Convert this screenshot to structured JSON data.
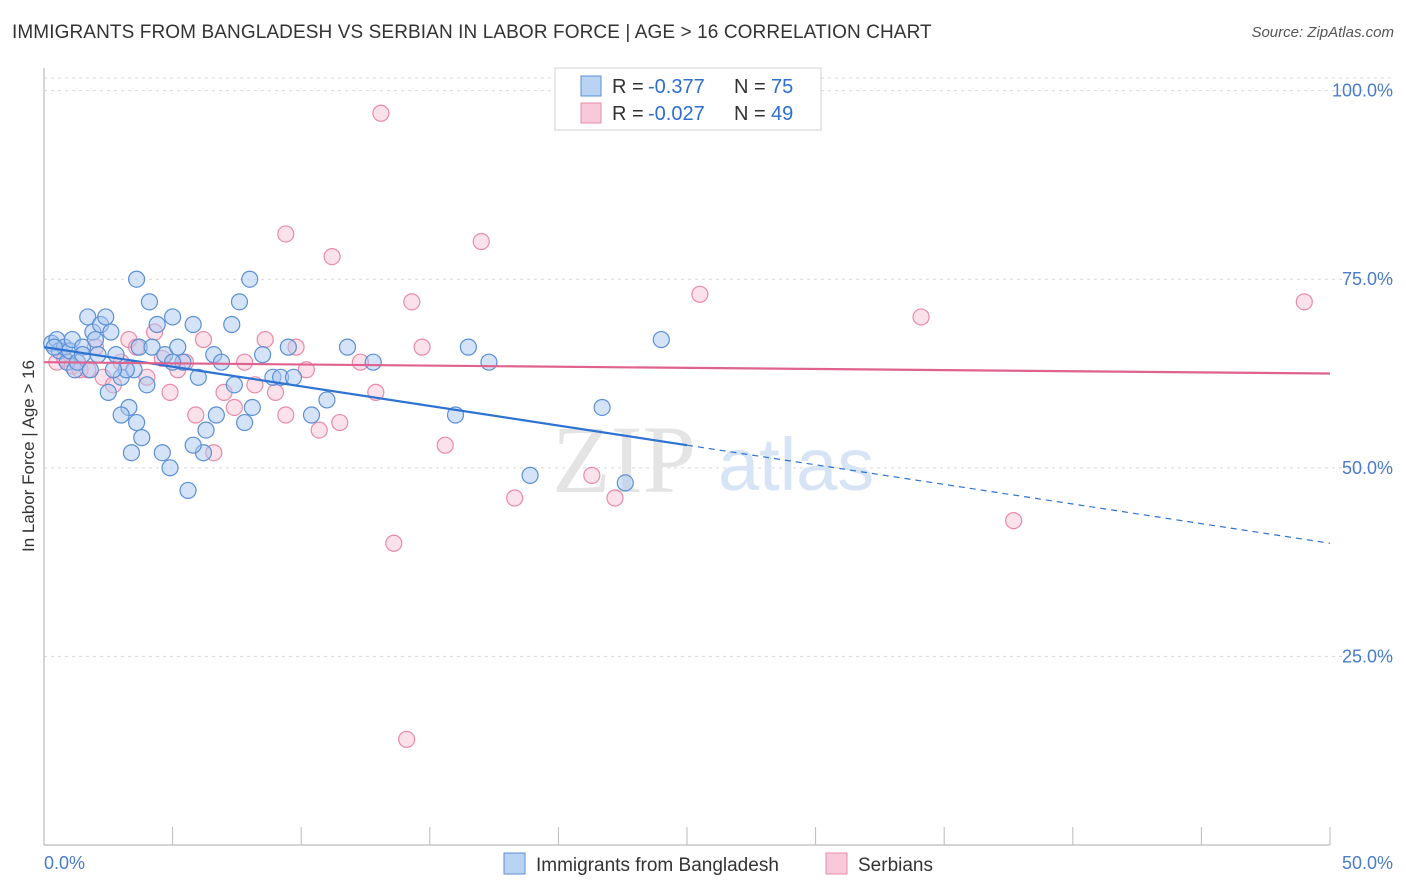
{
  "title": "IMMIGRANTS FROM BANGLADESH VS SERBIAN IN LABOR FORCE | AGE > 16 CORRELATION CHART",
  "source": "Source: ZipAtlas.com",
  "watermark": {
    "zip": "ZIP",
    "atlas": "atlas"
  },
  "legend": {
    "rows": [
      {
        "r_label": "R =",
        "r_value": "-0.377",
        "n_label": "N =",
        "n_value": "75"
      },
      {
        "r_label": "R =",
        "r_value": "-0.027",
        "n_label": "N =",
        "n_value": "49"
      }
    ]
  },
  "bottom_legend": [
    "Immigrants from Bangladesh",
    "Serbians"
  ],
  "colors": {
    "blue_fill": "#a9c8f0",
    "blue_stroke": "#5b8fd6",
    "blue_line": "#2e72d2",
    "pink_fill": "#f7bfd0",
    "pink_stroke": "#e98aa8",
    "pink_line": "#e0628e",
    "grid": "#d8d8d8",
    "tick_text": "#4a7cc9"
  },
  "chart_data": {
    "type": "scatter",
    "title": "IMMIGRANTS FROM BANGLADESH VS SERBIAN IN LABOR FORCE | AGE > 16 CORRELATION CHART",
    "xlabel": "",
    "ylabel": "In Labor Force | Age > 16",
    "xlim": [
      0,
      50
    ],
    "ylim": [
      0,
      103
    ],
    "x_tick_labels": [
      "0.0%",
      "50.0%"
    ],
    "y_ticks": [
      25,
      50,
      75,
      100
    ],
    "y_tick_labels": [
      "25.0%",
      "50.0%",
      "75.0%",
      "100.0%"
    ],
    "grid": true,
    "series": [
      {
        "name": "Immigrants from Bangladesh",
        "R": -0.377,
        "N": 75,
        "trend": {
          "x0": 0,
          "y0": 66,
          "x1": 50,
          "y1": 40,
          "solid_until_x": 25
        },
        "points": [
          [
            0.3,
            66.5
          ],
          [
            0.5,
            67
          ],
          [
            0.6,
            65.5
          ],
          [
            0.8,
            66
          ],
          [
            0.9,
            64
          ],
          [
            1.0,
            65.5
          ],
          [
            1.1,
            67
          ],
          [
            0.4,
            66
          ],
          [
            1.2,
            63
          ],
          [
            1.3,
            64
          ],
          [
            1.5,
            66
          ],
          [
            1.7,
            70
          ],
          [
            1.9,
            68
          ],
          [
            2.0,
            67
          ],
          [
            2.2,
            69
          ],
          [
            2.4,
            70
          ],
          [
            2.6,
            68
          ],
          [
            2.8,
            65
          ],
          [
            1.5,
            65
          ],
          [
            1.8,
            63
          ],
          [
            2.1,
            65
          ],
          [
            3.0,
            62
          ],
          [
            3.3,
            58
          ],
          [
            3.5,
            63
          ],
          [
            3.7,
            66
          ],
          [
            4.0,
            61
          ],
          [
            4.2,
            66
          ],
          [
            4.4,
            69
          ],
          [
            4.7,
            65
          ],
          [
            5.0,
            70
          ],
          [
            5.2,
            66
          ],
          [
            5.4,
            64
          ],
          [
            5.8,
            69
          ],
          [
            6.0,
            62
          ],
          [
            6.3,
            55
          ],
          [
            6.6,
            65
          ],
          [
            6.9,
            64
          ],
          [
            7.3,
            69
          ],
          [
            7.6,
            72
          ],
          [
            8.0,
            75
          ],
          [
            2.5,
            60
          ],
          [
            3.2,
            63
          ],
          [
            3.6,
            75
          ],
          [
            4.1,
            72
          ],
          [
            3.4,
            52
          ],
          [
            4.6,
            52
          ],
          [
            5.6,
            47
          ],
          [
            6.2,
            52
          ],
          [
            7.8,
            56
          ],
          [
            8.1,
            58
          ],
          [
            8.5,
            65
          ],
          [
            8.9,
            62
          ],
          [
            9.2,
            62
          ],
          [
            9.7,
            62
          ],
          [
            10.4,
            57
          ],
          [
            11.0,
            59
          ],
          [
            11.8,
            66
          ],
          [
            12.8,
            64
          ],
          [
            16.0,
            57
          ],
          [
            16.5,
            66
          ],
          [
            5.0,
            64
          ],
          [
            3.8,
            54
          ],
          [
            4.9,
            50
          ],
          [
            5.8,
            53
          ],
          [
            6.7,
            57
          ],
          [
            7.4,
            61
          ],
          [
            2.7,
            63
          ],
          [
            3.0,
            57
          ],
          [
            3.6,
            56
          ],
          [
            17.3,
            64
          ],
          [
            24.0,
            67
          ],
          [
            18.9,
            49
          ],
          [
            21.7,
            58
          ],
          [
            22.6,
            48
          ],
          [
            9.5,
            66
          ]
        ]
      },
      {
        "name": "Serbians",
        "R": -0.027,
        "N": 49,
        "trend": {
          "x0": 0,
          "y0": 64,
          "x1": 50,
          "y1": 62.5
        },
        "points": [
          [
            0.5,
            64
          ],
          [
            0.8,
            64.5
          ],
          [
            1.1,
            63.5
          ],
          [
            1.4,
            63
          ],
          [
            1.7,
            63
          ],
          [
            2.0,
            66
          ],
          [
            2.3,
            62
          ],
          [
            2.7,
            61
          ],
          [
            3.0,
            64
          ],
          [
            3.3,
            67
          ],
          [
            3.6,
            66
          ],
          [
            4.0,
            62
          ],
          [
            4.3,
            68
          ],
          [
            4.6,
            64.5
          ],
          [
            4.9,
            60
          ],
          [
            5.2,
            63
          ],
          [
            5.5,
            64
          ],
          [
            5.9,
            57
          ],
          [
            6.2,
            67
          ],
          [
            6.6,
            52
          ],
          [
            7.0,
            60
          ],
          [
            7.4,
            58
          ],
          [
            7.8,
            64
          ],
          [
            8.2,
            61
          ],
          [
            8.6,
            67
          ],
          [
            9.0,
            60
          ],
          [
            9.4,
            57
          ],
          [
            9.8,
            66
          ],
          [
            10.2,
            63
          ],
          [
            10.7,
            55
          ],
          [
            11.5,
            56
          ],
          [
            12.3,
            64
          ],
          [
            12.9,
            60
          ],
          [
            13.6,
            40
          ],
          [
            14.1,
            14
          ],
          [
            14.3,
            72
          ],
          [
            11.2,
            78
          ],
          [
            9.4,
            81
          ],
          [
            14.7,
            66
          ],
          [
            15.6,
            53
          ],
          [
            17.0,
            80
          ],
          [
            18.3,
            46
          ],
          [
            21.3,
            49
          ],
          [
            22.2,
            46
          ],
          [
            13.1,
            97
          ],
          [
            25.5,
            73
          ],
          [
            34.1,
            70
          ],
          [
            37.7,
            43
          ],
          [
            49.0,
            72
          ]
        ]
      }
    ]
  }
}
